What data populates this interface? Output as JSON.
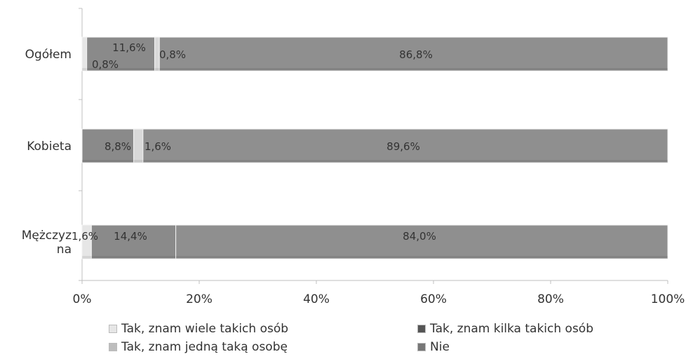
{
  "chart_data": {
    "type": "bar",
    "orientation": "horizontal",
    "stacked": true,
    "percent": true,
    "categories": [
      "Ogółem",
      "Kobieta",
      "Mężczyzna"
    ],
    "category_display": [
      [
        "Ogółem"
      ],
      [
        "Kobieta"
      ],
      [
        "Mężczyz",
        "na"
      ]
    ],
    "series": [
      {
        "name": "Tak, znam wiele takich osób",
        "values": [
          0.8,
          0.0,
          1.6
        ],
        "color": "#e6e6e6",
        "labels": [
          "0,8%",
          "",
          "1,6%"
        ]
      },
      {
        "name": "Tak, znam kilka takich osób",
        "values": [
          11.6,
          8.8,
          14.4
        ],
        "color": "#8a8a8a",
        "labels": [
          "11,6%",
          "8,8%",
          "14,4%"
        ]
      },
      {
        "name": "Tak, znam jedną taką osobę",
        "values": [
          0.8,
          1.6,
          0.0
        ],
        "color": "#d9d9d9",
        "labels": [
          "0,8%",
          "1,6%",
          ""
        ]
      },
      {
        "name": "Nie",
        "values": [
          86.8,
          89.6,
          84.0
        ],
        "color": "#8f8f8f",
        "labels": [
          "86,8%",
          "89,6%",
          "84,0%"
        ]
      }
    ],
    "xlim": [
      0,
      100
    ],
    "xticks": [
      0,
      20,
      40,
      60,
      80,
      100
    ],
    "xtick_labels": [
      "0%",
      "20%",
      "40%",
      "60%",
      "80%",
      "100%"
    ],
    "legend_position": "bottom",
    "legend": [
      "Tak, znam wiele takich osób",
      "Tak, znam kilka takich osób",
      "Tak, znam jedną taką osobę",
      "Nie"
    ]
  }
}
